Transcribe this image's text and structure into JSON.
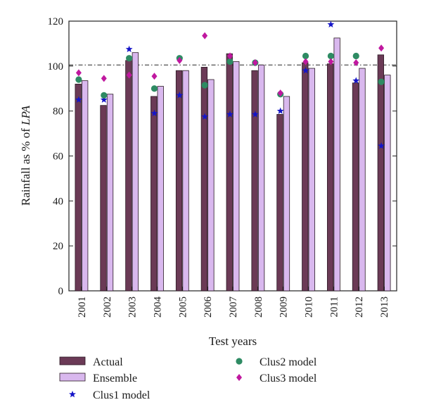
{
  "chart_data": {
    "type": "bar",
    "xlabel": "Test years",
    "ylabel": "Rainfall as % of ",
    "ylabel_italic": "LPA",
    "ylim": [
      0,
      120
    ],
    "yticks": [
      0,
      20,
      40,
      60,
      80,
      100,
      120
    ],
    "reference_line": 100.5,
    "categories": [
      "2001",
      "2002",
      "2003",
      "2004",
      "2005",
      "2006",
      "2007",
      "2008",
      "2009",
      "2010",
      "2011",
      "2012",
      "2013"
    ],
    "series": [
      {
        "name": "Actual",
        "kind": "bar",
        "color": "#6b3a56",
        "values": [
          92,
          82.5,
          102.5,
          86.5,
          98,
          99.5,
          105.5,
          98,
          78.5,
          101.5,
          101,
          92.5,
          105
        ]
      },
      {
        "name": "Ensemble",
        "kind": "bar",
        "color": "#d9b8ee",
        "values": [
          93.5,
          87.5,
          106,
          91,
          98,
          94,
          102,
          100.5,
          86.5,
          99,
          112.5,
          99,
          96
        ]
      },
      {
        "name": "Clus1 model",
        "kind": "marker",
        "marker": "star",
        "color": "#1515c8",
        "values": [
          85,
          85,
          107.5,
          79,
          87,
          77.5,
          78.5,
          78.5,
          80,
          98,
          118.5,
          93.5,
          64.5
        ]
      },
      {
        "name": "Clus2 model",
        "kind": "marker",
        "marker": "circle",
        "color": "#2e8b63",
        "values": [
          94,
          87,
          103.5,
          90,
          103.5,
          91.5,
          102,
          101.5,
          87.5,
          104.5,
          104.5,
          104.5,
          93
        ]
      },
      {
        "name": "Clus3 model",
        "kind": "marker",
        "marker": "diamond",
        "color": "#c0189f",
        "values": [
          97,
          94.5,
          96,
          95.5,
          102.5,
          113.5,
          104.5,
          101.5,
          88,
          102,
          102,
          101.5,
          108
        ]
      }
    ]
  }
}
